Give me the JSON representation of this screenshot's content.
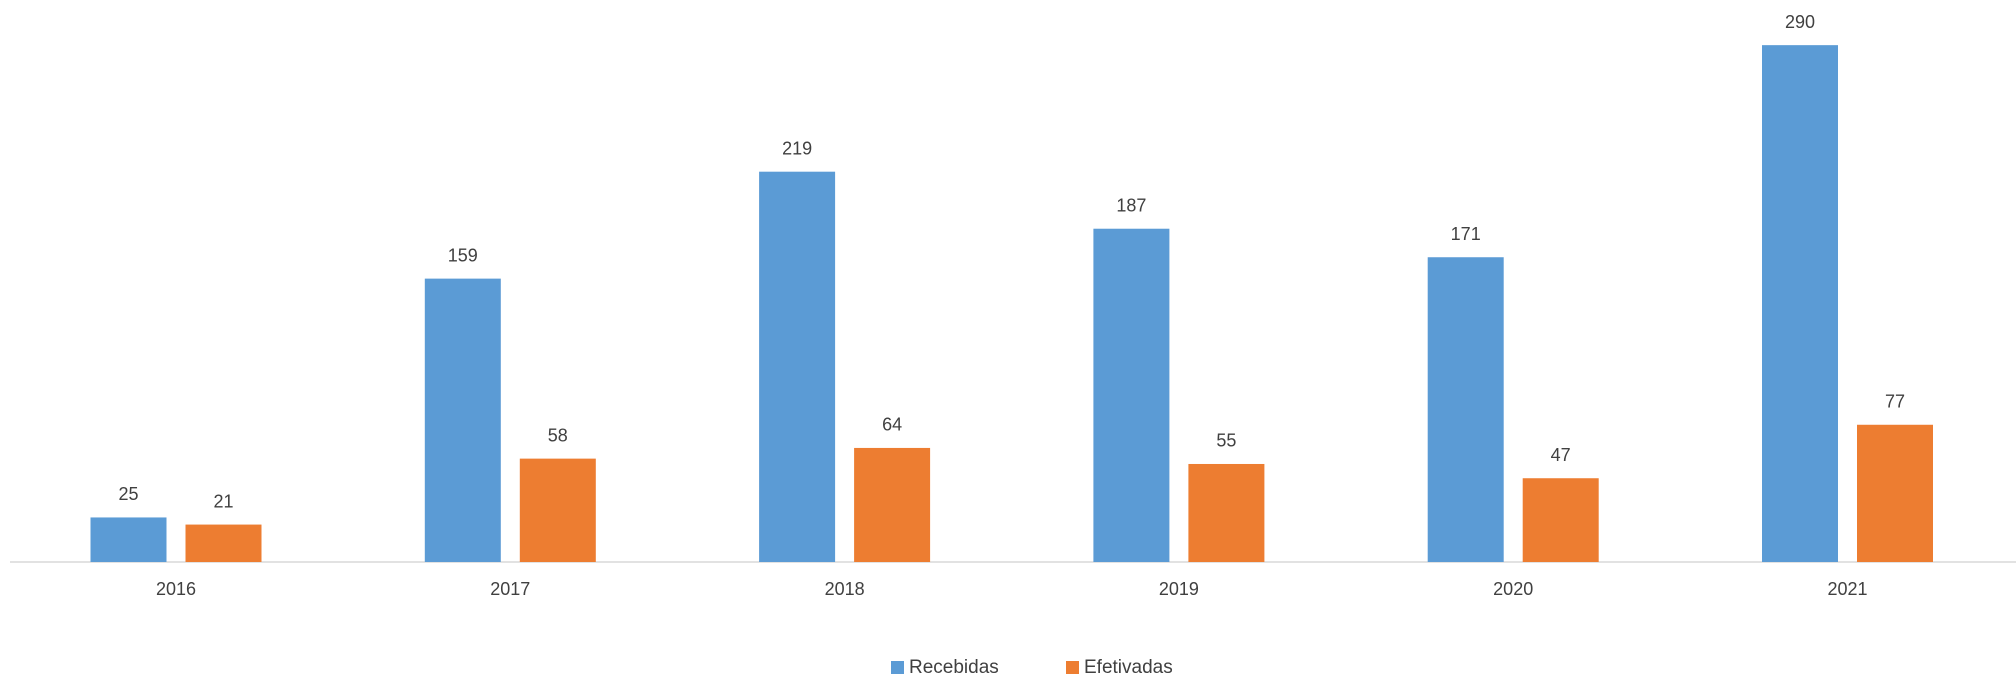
{
  "chart_data": {
    "type": "bar",
    "categories": [
      "2016",
      "2017",
      "2018",
      "2019",
      "2020",
      "2021"
    ],
    "series": [
      {
        "name": "Recebidas",
        "color": "#5b9bd5",
        "values": [
          25,
          159,
          219,
          187,
          171,
          290
        ]
      },
      {
        "name": "Efetivadas",
        "color": "#ed7d31",
        "values": [
          21,
          58,
          64,
          55,
          47,
          77
        ]
      }
    ],
    "legend": "bottom"
  }
}
